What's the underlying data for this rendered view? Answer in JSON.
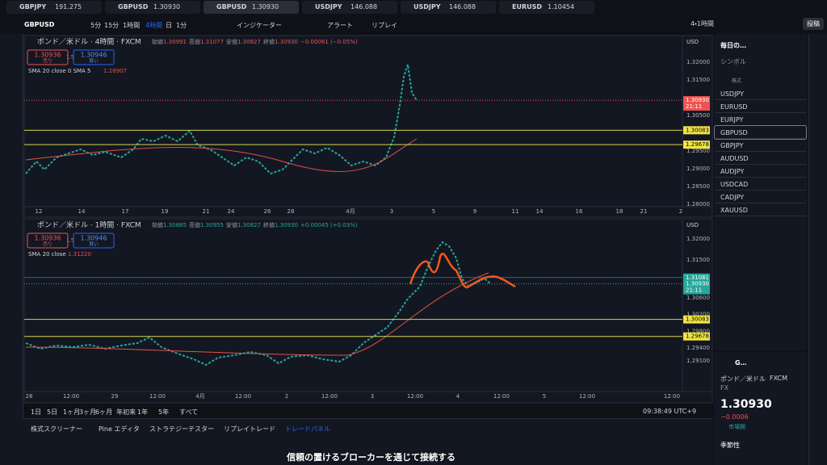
{
  "tabs": [
    {
      "symbol": "GBPJPY",
      "price": "191.275"
    },
    {
      "symbol": "GBPUSD",
      "price": "1.30930"
    },
    {
      "symbol": "GBPUSD",
      "price": "1.30930"
    },
    {
      "symbol": "USDJPY",
      "price": "146.088"
    },
    {
      "symbol": "USDJPY",
      "price": "146.088"
    },
    {
      "symbol": "EURUSD",
      "price": "1.10454"
    }
  ],
  "toolbar": {
    "symbol": "GBPUSD",
    "intervals": [
      "5分",
      "15分",
      "1時間",
      "4時間",
      "日",
      "1分"
    ],
    "indicators": "インジケーター",
    "alert": "アラート",
    "replay": "リプレイ",
    "layout": "4・1時間",
    "publish": "投稿"
  },
  "charts": [
    {
      "title": "ポンド／米ドル · 4時間 · FXCM",
      "ohlc": [
        [
          "始値",
          "1.30991"
        ],
        [
          "高値",
          "1.31077"
        ],
        [
          "安値",
          "1.30827"
        ],
        [
          "終値",
          "1.30930"
        ]
      ],
      "change": "−0.00061 (−0.05%)",
      "sell": "1.30936",
      "sell_label": "売り",
      "spread": "1.5",
      "buy": "1.30946",
      "buy_label": "買い",
      "indicator": "SMA 20 close 0 SMA 5",
      "indicator_value": "1.28907",
      "currency": "USD",
      "price_axis": [
        "1.32000",
        "1.31500",
        "1.30500",
        "1.29500",
        "1.29000",
        "1.28500",
        "1.28000"
      ],
      "last_price": "1.30930",
      "countdown": "21:11",
      "levels": [
        "1.30083",
        "1.29678"
      ],
      "time_axis": [
        "12",
        "14",
        "17",
        "19",
        "21",
        "24",
        "26",
        "28",
        "4月",
        "3",
        "5",
        "9",
        "11",
        "14",
        "16",
        "18",
        "21",
        "2"
      ]
    },
    {
      "title": "ポンド／米ドル · 1時間 · FXCM",
      "ohlc": [
        [
          "始値",
          "1.30885"
        ],
        [
          "高値",
          "1.30955"
        ],
        [
          "安値",
          "1.30827"
        ],
        [
          "終値",
          "1.30930"
        ]
      ],
      "change": "+0.00045 (+0.03%)",
      "sell": "1.30936",
      "sell_label": "売り",
      "spread": "1.5",
      "buy": "1.30946",
      "buy_label": "買い",
      "indicator": "SMA 20 close",
      "indicator_value": "1.31220",
      "currency": "USD",
      "price_axis": [
        "1.32000",
        "1.31500",
        "1.30600",
        "1.30200",
        "1.29800",
        "1.29400",
        "1.29100"
      ],
      "last_price": "1.30930",
      "countdown": "21:11",
      "marker": "1.31081",
      "levels": [
        "1.30083",
        "1.29678"
      ],
      "time_axis": [
        "28",
        "12:00",
        "29",
        "12:00",
        "4月",
        "12:00",
        "2",
        "12:00",
        "3",
        "12:00",
        "4",
        "12:00",
        "5",
        "12:00",
        "12:00"
      ]
    }
  ],
  "ranges": [
    "1日",
    "5日",
    "1ヶ月",
    "3ヶ月",
    "6ヶ月",
    "年初来",
    "1年",
    "5年",
    "すべて"
  ],
  "clock": "09:38:49 UTC+9",
  "bottom_tabs": [
    "株式スクリーナー",
    "Pine エディタ",
    "ストラテジーテスター",
    "リプレイトレード",
    "トレードパネル"
  ],
  "subtitle": "信頼の置けるブローカーを通じて接続する",
  "watchlist": {
    "title": "毎日の…",
    "column": "シンボル",
    "section": "株式",
    "symbols": [
      "USDJPY",
      "EURUSD",
      "EURJPY",
      "GBPUSD",
      "GBPJPY",
      "AUDUSD",
      "AUDJPY",
      "USDCAD",
      "CADJPY",
      "XAUUSD"
    ]
  },
  "detail": {
    "symbol": "G…",
    "name": "ポンド／米ドル",
    "exchange": "FXCM",
    "type": "FX",
    "price": "1.30930",
    "change": "−0.0006",
    "status": "市場開",
    "seasonality": "季節性"
  }
}
